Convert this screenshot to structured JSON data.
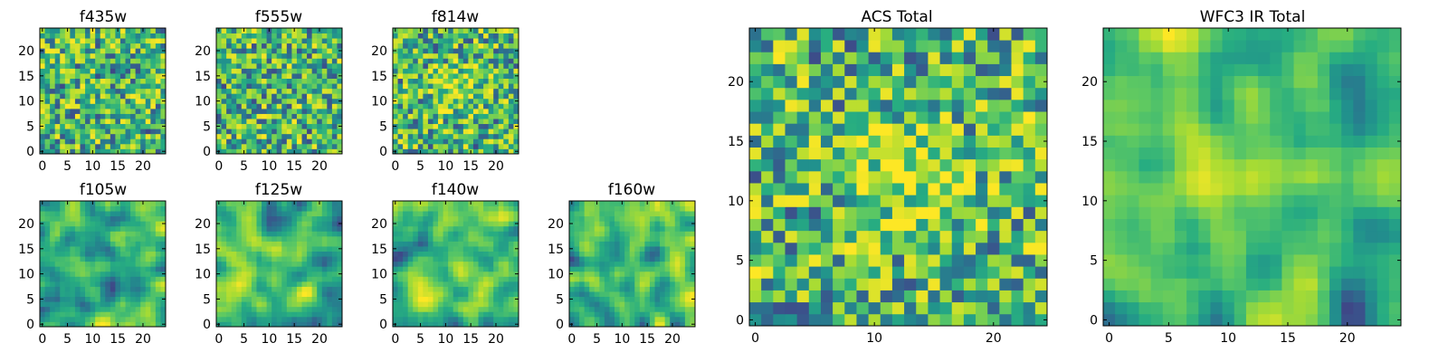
{
  "chart_data": {
    "type": "heatmap",
    "colormap": "viridis",
    "panels": [
      {
        "id": "f435w",
        "title": "f435w",
        "shape": [
          25,
          25
        ],
        "xlim": [
          -0.5,
          24.5
        ],
        "ylim": [
          -0.5,
          24.5
        ],
        "xticks": [
          0,
          5,
          10,
          15,
          20
        ],
        "yticks": [
          0,
          5,
          10,
          15,
          20
        ],
        "pattern": "noise",
        "seed": 11
      },
      {
        "id": "f555w",
        "title": "f555w",
        "shape": [
          25,
          25
        ],
        "xlim": [
          -0.5,
          24.5
        ],
        "ylim": [
          -0.5,
          24.5
        ],
        "xticks": [
          0,
          5,
          10,
          15,
          20
        ],
        "yticks": [
          0,
          5,
          10,
          15,
          20
        ],
        "pattern": "noise",
        "seed": 23
      },
      {
        "id": "f814w",
        "title": "f814w",
        "shape": [
          25,
          25
        ],
        "xlim": [
          -0.5,
          24.5
        ],
        "ylim": [
          -0.5,
          24.5
        ],
        "xticks": [
          0,
          5,
          10,
          15,
          20
        ],
        "yticks": [
          0,
          5,
          10,
          15,
          20
        ],
        "pattern": "noise-center",
        "seed": 37
      },
      {
        "id": "f105w",
        "title": "f105w",
        "shape": [
          25,
          25
        ],
        "xlim": [
          -0.5,
          24.5
        ],
        "ylim": [
          -0.5,
          24.5
        ],
        "xticks": [
          0,
          5,
          10,
          15,
          20
        ],
        "yticks": [
          0,
          5,
          10,
          15,
          20
        ],
        "pattern": "smooth",
        "seed": 41
      },
      {
        "id": "f125w",
        "title": "f125w",
        "shape": [
          25,
          25
        ],
        "xlim": [
          -0.5,
          24.5
        ],
        "ylim": [
          -0.5,
          24.5
        ],
        "xticks": [
          0,
          5,
          10,
          15,
          20
        ],
        "yticks": [
          0,
          5,
          10,
          15,
          20
        ],
        "pattern": "smooth",
        "seed": 53
      },
      {
        "id": "f140w",
        "title": "f140w",
        "shape": [
          25,
          25
        ],
        "xlim": [
          -0.5,
          24.5
        ],
        "ylim": [
          -0.5,
          24.5
        ],
        "xticks": [
          0,
          5,
          10,
          15,
          20
        ],
        "yticks": [
          0,
          5,
          10,
          15,
          20
        ],
        "pattern": "smooth",
        "seed": 67
      },
      {
        "id": "f160w",
        "title": "f160w",
        "shape": [
          25,
          25
        ],
        "xlim": [
          -0.5,
          24.5
        ],
        "ylim": [
          -0.5,
          24.5
        ],
        "xticks": [
          0,
          5,
          10,
          15,
          20
        ],
        "yticks": [
          0,
          5,
          10,
          15,
          20
        ],
        "pattern": "smooth",
        "seed": 79
      },
      {
        "id": "acs_total",
        "title": "ACS Total",
        "shape": [
          25,
          25
        ],
        "xlim": [
          -0.5,
          24.5
        ],
        "ylim": [
          -0.5,
          24.5
        ],
        "xticks": [
          0,
          10,
          20
        ],
        "yticks": [
          0,
          5,
          10,
          15,
          20
        ],
        "pattern": "noise-center",
        "seed": 97
      },
      {
        "id": "wfc3_ir_total",
        "title": "WFC3 IR Total",
        "shape": [
          25,
          25
        ],
        "xlim": [
          -0.5,
          24.5
        ],
        "ylim": [
          -0.5,
          24.5
        ],
        "xticks": [
          0,
          5,
          10,
          15,
          20
        ],
        "yticks": [
          0,
          5,
          10,
          15,
          20
        ],
        "pattern": "smooth-center",
        "seed": 131
      }
    ]
  }
}
